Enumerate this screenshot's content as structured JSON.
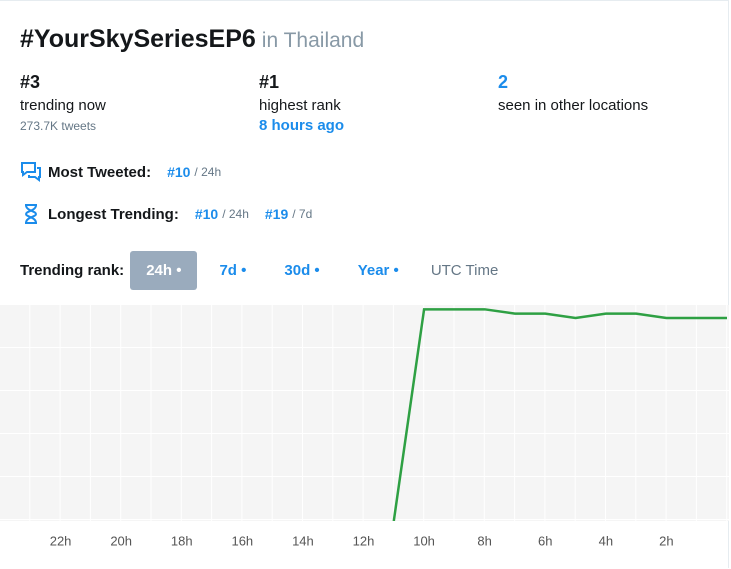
{
  "header": {
    "title": "#YourSkySeriesEP6",
    "location": "in Thailand"
  },
  "stats": [
    {
      "value": "#3",
      "label": "trending now",
      "detail": "273.7K tweets"
    },
    {
      "value": "#1",
      "label": "highest rank",
      "detail": "8 hours ago"
    },
    {
      "value": "2",
      "label": "seen in other locations"
    }
  ],
  "most_tweeted": {
    "label": "Most Tweeted:",
    "ranks": [
      {
        "rank": "#10",
        "period": "/ 24h"
      }
    ]
  },
  "longest_trending": {
    "label": "Longest Trending:",
    "ranks": [
      {
        "rank": "#10",
        "period": "/ 24h"
      },
      {
        "rank": "#19",
        "period": "/ 7d"
      }
    ]
  },
  "tabs": {
    "label": "Trending rank:",
    "items": [
      "24h •",
      "7d •",
      "30d •",
      "Year •"
    ],
    "selected": 0,
    "timezone": "UTC Time"
  },
  "chart_data": {
    "type": "line",
    "x": [
      11,
      10,
      8,
      7,
      6,
      5,
      4,
      3,
      2,
      0
    ],
    "series": [
      {
        "color": "#2ea043",
        "values": [
          50,
          1,
          1,
          2,
          2,
          3,
          2,
          2,
          3,
          3
        ]
      }
    ],
    "xlim": [
      24,
      0
    ],
    "ylim": [
      0,
      50
    ],
    "xticks": [
      {
        "value": 22,
        "label": "22h"
      },
      {
        "value": 20,
        "label": "20h"
      },
      {
        "value": 18,
        "label": "18h"
      },
      {
        "value": 16,
        "label": "16h"
      },
      {
        "value": 14,
        "label": "14h"
      },
      {
        "value": 12,
        "label": "12h"
      },
      {
        "value": 10,
        "label": "10h"
      },
      {
        "value": 8,
        "label": "8h"
      },
      {
        "value": 6,
        "label": "6h"
      },
      {
        "value": 4,
        "label": "4h"
      },
      {
        "value": 2,
        "label": "2h"
      }
    ]
  }
}
